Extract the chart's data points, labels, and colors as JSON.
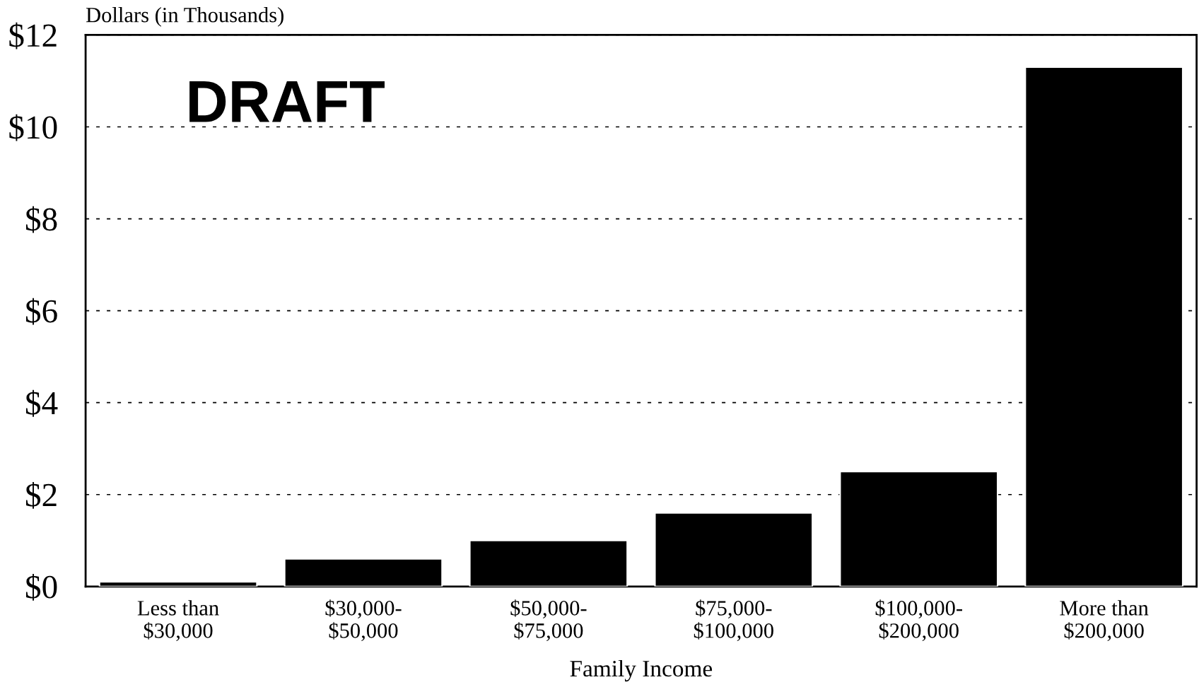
{
  "chart_data": {
    "type": "bar",
    "ylabel": "Dollars (in Thousands)",
    "xlabel": "Family Income",
    "categories": [
      "Less than\n$30,000",
      "$30,000-\n$50,000",
      "$50,000-\n$75,000",
      "$75,000-\n$100,000",
      "$100,000-\n$200,000",
      "More than\n$200,000"
    ],
    "values": [
      0.1,
      0.6,
      1.0,
      1.6,
      2.5,
      11.3
    ],
    "color": "#000000",
    "ylim": [
      0,
      12
    ],
    "yticks": [
      {
        "value": 0,
        "label": "$0"
      },
      {
        "value": 2,
        "label": "$2"
      },
      {
        "value": 4,
        "label": "$4"
      },
      {
        "value": 6,
        "label": "$6"
      },
      {
        "value": 8,
        "label": "$8"
      },
      {
        "value": 10,
        "label": "$10"
      },
      {
        "value": 12,
        "label": "$12"
      }
    ],
    "grid": "y",
    "legend": false,
    "annotations": [
      "DRAFT"
    ]
  }
}
